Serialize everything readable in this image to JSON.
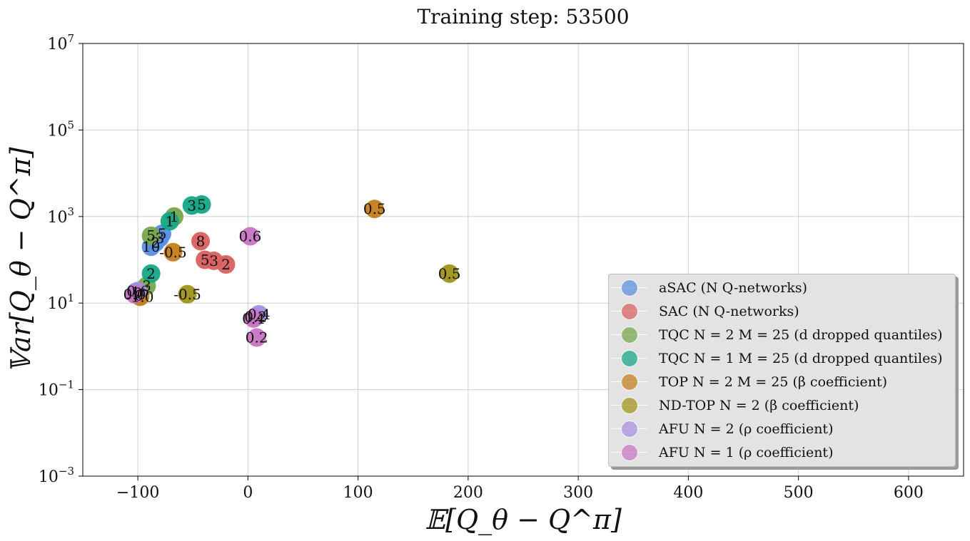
{
  "chart_data": {
    "type": "scatter",
    "title": "Training step: 53500",
    "xlabel": "𝔼[Q_θ − Q^π]",
    "ylabel": "𝕍ar[Q_θ − Q^π]",
    "xlim": [
      -150,
      650
    ],
    "ylim_log10": [
      -3,
      7
    ],
    "y_scale": "log",
    "grid": true,
    "legend_placement": "lower-right",
    "x_ticks": [
      -100,
      0,
      100,
      200,
      300,
      400,
      500,
      600
    ],
    "x_tick_labels": [
      "−100",
      "0",
      "100",
      "200",
      "300",
      "400",
      "500",
      "600"
    ],
    "y_ticks_log10": [
      -3,
      -1,
      1,
      3,
      5,
      7
    ],
    "y_tick_labels": [
      {
        "base": "10",
        "exp": "−3"
      },
      {
        "base": "10",
        "exp": "−1"
      },
      {
        "base": "10",
        "exp": "1"
      },
      {
        "base": "10",
        "exp": "3"
      },
      {
        "base": "10",
        "exp": "5"
      },
      {
        "base": "10",
        "exp": "7"
      }
    ],
    "series": [
      {
        "name": "aSAC (N Q-networks)",
        "color": "#5b8fe0",
        "points": [
          {
            "x": -78,
            "y": 400,
            "label": "5"
          },
          {
            "x": -80,
            "y": 320,
            "label": "3"
          },
          {
            "x": -84,
            "y": 250,
            "label": "2"
          },
          {
            "x": -88,
            "y": 200,
            "label": "10"
          },
          {
            "x": -102,
            "y": 18,
            "label": "1"
          }
        ]
      },
      {
        "name": "SAC (N Q-networks)",
        "color": "#d9605f",
        "points": [
          {
            "x": -43,
            "y": 270,
            "label": "8"
          },
          {
            "x": -39,
            "y": 100,
            "label": "5"
          },
          {
            "x": -31,
            "y": 95,
            "label": "3"
          },
          {
            "x": -20,
            "y": 78,
            "label": "2"
          }
        ]
      },
      {
        "name": "TQC N = 2 M = 25 (d dropped quantiles)",
        "color": "#77a84a",
        "points": [
          {
            "x": -67,
            "y": 1000,
            "label": "1"
          },
          {
            "x": -88,
            "y": 360,
            "label": "5"
          },
          {
            "x": -92,
            "y": 25,
            "label": "3"
          },
          {
            "x": -99,
            "y": 15,
            "label": "0"
          }
        ]
      },
      {
        "name": "TQC N = 1 M = 25 (d dropped quantiles)",
        "color": "#15a585",
        "points": [
          {
            "x": -51,
            "y": 1800,
            "label": "3"
          },
          {
            "x": -42,
            "y": 1900,
            "label": "5"
          },
          {
            "x": -71,
            "y": 780,
            "label": "1"
          },
          {
            "x": -88,
            "y": 48,
            "label": "2"
          },
          {
            "x": -100,
            "y": 17,
            "label": "0"
          }
        ]
      },
      {
        "name": "TOP N = 2 M = 25 (β coefficient)",
        "color": "#c47d1a",
        "points": [
          {
            "x": 115,
            "y": 1500,
            "label": "0.5"
          },
          {
            "x": -68,
            "y": 150,
            "label": "-0.5"
          },
          {
            "x": -98,
            "y": 14,
            "label": "-1.0"
          }
        ]
      },
      {
        "name": "ND-TOP N = 2 (β coefficient)",
        "color": "#a0941a",
        "points": [
          {
            "x": 183,
            "y": 48,
            "label": "0.5"
          },
          {
            "x": -55,
            "y": 16,
            "label": "-0.5"
          }
        ]
      },
      {
        "name": "AFU N = 2 (ρ coefficient)",
        "color": "#a98ee0",
        "points": [
          {
            "x": 10,
            "y": 5.5,
            "label": "0.4"
          },
          {
            "x": 7,
            "y": 4.8,
            "label": "0.2"
          },
          {
            "x": -100,
            "y": 19,
            "label": "0.6"
          }
        ]
      },
      {
        "name": "AFU N = 1 (ρ coefficient)",
        "color": "#c874c2",
        "points": [
          {
            "x": 2,
            "y": 350,
            "label": "0.6"
          },
          {
            "x": 5,
            "y": 4.4,
            "label": "0.4"
          },
          {
            "x": 8,
            "y": 1.6,
            "label": "0.2"
          },
          {
            "x": -103,
            "y": 16,
            "label": "0.0"
          }
        ]
      }
    ]
  }
}
